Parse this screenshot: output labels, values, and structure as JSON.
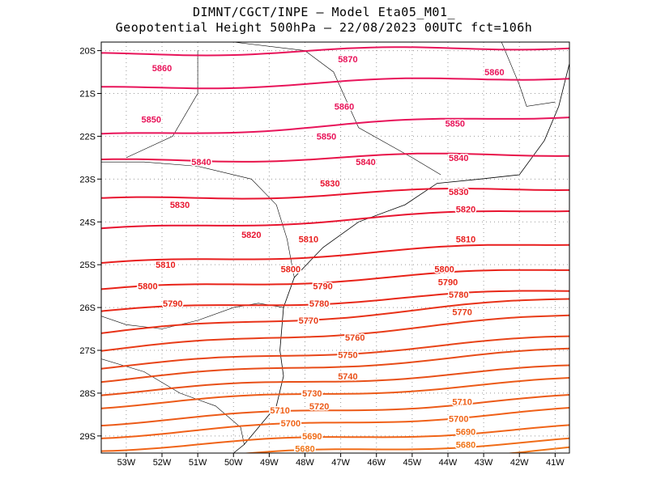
{
  "header": {
    "line1": "DIMNT/CGCT/INPE –  Model Eta05_M01_",
    "line2": "Geopotential Height 500hPa –  22/08/2023 00UTC fct=106h"
  },
  "axes": {
    "lon_ticks": [
      "53W",
      "52W",
      "51W",
      "50W",
      "49W",
      "48W",
      "47W",
      "46W",
      "45W",
      "44W",
      "43W",
      "42W",
      "41W"
    ],
    "lat_ticks": [
      "20S",
      "21S",
      "22S",
      "23S",
      "24S",
      "25S",
      "26S",
      "27S",
      "28S",
      "29S"
    ]
  },
  "colors": {
    "c5870": "#e8145a",
    "c5860": "#e8145a",
    "c5850": "#e8145a",
    "c5840": "#e8144a",
    "c5830": "#e81430",
    "c5820": "#e81430",
    "c5810": "#e81e1e",
    "c5800": "#e82218",
    "c5790": "#e82818",
    "c5780": "#e83218",
    "c5770": "#e83c18",
    "c5760": "#e84418",
    "c5750": "#e84c18",
    "c5740": "#e85018",
    "c5730": "#ec5a18",
    "c5720": "#ec5a18",
    "c5710": "#f06018",
    "c5700": "#f06418",
    "c5690": "#f06c18",
    "c5680": "#f07418",
    "c5670": "#f07c18",
    "coast": "#000000",
    "grid": "#999999"
  },
  "chart_data": {
    "type": "contour-map",
    "variable": "Geopotential Height 500hPa",
    "contour_interval": 10,
    "levels": [
      5670,
      5680,
      5690,
      5700,
      5710,
      5720,
      5730,
      5740,
      5750,
      5760,
      5770,
      5780,
      5790,
      5800,
      5810,
      5820,
      5830,
      5840,
      5850,
      5860,
      5870
    ],
    "lon_range": [
      -53.7,
      -40.6
    ],
    "lat_range": [
      -29.4,
      -19.8
    ],
    "grid": true,
    "labels": [
      {
        "text": "5870",
        "lon": -46.8,
        "lat": -20.2
      },
      {
        "text": "5860",
        "lon": -52.0,
        "lat": -20.4
      },
      {
        "text": "5860",
        "lon": -42.7,
        "lat": -20.5
      },
      {
        "text": "5860",
        "lon": -46.9,
        "lat": -21.3
      },
      {
        "text": "5850",
        "lon": -52.3,
        "lat": -21.6
      },
      {
        "text": "5850",
        "lon": -43.8,
        "lat": -21.7
      },
      {
        "text": "5850",
        "lon": -47.4,
        "lat": -22.0
      },
      {
        "text": "5840",
        "lon": -50.9,
        "lat": -22.6
      },
      {
        "text": "5840",
        "lon": -46.3,
        "lat": -22.6
      },
      {
        "text": "5840",
        "lon": -43.7,
        "lat": -22.5
      },
      {
        "text": "5830",
        "lon": -47.3,
        "lat": -23.1
      },
      {
        "text": "5830",
        "lon": -43.7,
        "lat": -23.3
      },
      {
        "text": "5830",
        "lon": -51.5,
        "lat": -23.6
      },
      {
        "text": "5820",
        "lon": -43.5,
        "lat": -23.7
      },
      {
        "text": "5820",
        "lon": -49.5,
        "lat": -24.3
      },
      {
        "text": "5810",
        "lon": -47.9,
        "lat": -24.4
      },
      {
        "text": "5810",
        "lon": -43.5,
        "lat": -24.4
      },
      {
        "text": "5810",
        "lon": -51.9,
        "lat": -25.0
      },
      {
        "text": "5800",
        "lon": -48.4,
        "lat": -25.1
      },
      {
        "text": "5800",
        "lon": -44.1,
        "lat": -25.1
      },
      {
        "text": "5790",
        "lon": -44.0,
        "lat": -25.4
      },
      {
        "text": "5800",
        "lon": -52.4,
        "lat": -25.5
      },
      {
        "text": "5790",
        "lon": -47.5,
        "lat": -25.5
      },
      {
        "text": "5780",
        "lon": -43.7,
        "lat": -25.7
      },
      {
        "text": "5780",
        "lon": -47.6,
        "lat": -25.9
      },
      {
        "text": "5790",
        "lon": -51.7,
        "lat": -25.9
      },
      {
        "text": "5770",
        "lon": -43.6,
        "lat": -26.1
      },
      {
        "text": "5770",
        "lon": -47.9,
        "lat": -26.3
      },
      {
        "text": "5760",
        "lon": -46.6,
        "lat": -26.7
      },
      {
        "text": "5750",
        "lon": -46.8,
        "lat": -27.1
      },
      {
        "text": "5740",
        "lon": -46.8,
        "lat": -27.6
      },
      {
        "text": "5730",
        "lon": -47.8,
        "lat": -28.0
      },
      {
        "text": "5720",
        "lon": -47.6,
        "lat": -28.3
      },
      {
        "text": "5710",
        "lon": -43.6,
        "lat": -28.2
      },
      {
        "text": "5710",
        "lon": -48.7,
        "lat": -28.4
      },
      {
        "text": "5700",
        "lon": -43.7,
        "lat": -28.6
      },
      {
        "text": "5700",
        "lon": -48.4,
        "lat": -28.7
      },
      {
        "text": "5690",
        "lon": -43.5,
        "lat": -28.9
      },
      {
        "text": "5690",
        "lon": -47.8,
        "lat": -29.0
      },
      {
        "text": "5680",
        "lon": -43.5,
        "lat": -29.2
      },
      {
        "text": "5680",
        "lon": -48.0,
        "lat": -29.3
      }
    ]
  }
}
